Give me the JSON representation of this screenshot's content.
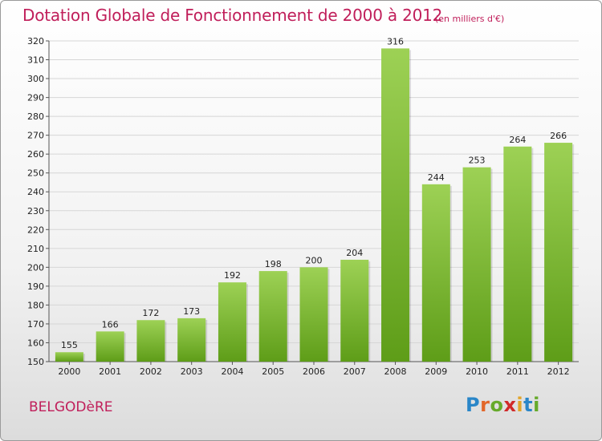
{
  "page": {
    "commune": "BELGODèRE",
    "logo": {
      "letters": [
        "P",
        "r",
        "o",
        "x",
        "i",
        "t",
        "i"
      ],
      "colors": [
        "#2a86c8",
        "#e2672a",
        "#66aa2b",
        "#d02a2a",
        "#e2a52a",
        "#2a86c8",
        "#66aa2b"
      ]
    }
  },
  "chart_data": {
    "type": "bar",
    "title": "Dotation Globale de Fonctionnement de 2000 à 2012",
    "unit_note": "(en milliers d'€)",
    "categories": [
      "2000",
      "2001",
      "2002",
      "2003",
      "2004",
      "2005",
      "2006",
      "2007",
      "2008",
      "2009",
      "2010",
      "2011",
      "2012"
    ],
    "values": [
      155,
      166,
      172,
      173,
      192,
      198,
      200,
      204,
      316,
      244,
      253,
      264,
      266
    ],
    "ylim": [
      150,
      320
    ],
    "yticks": [
      150,
      160,
      170,
      180,
      190,
      200,
      210,
      220,
      230,
      240,
      250,
      260,
      270,
      280,
      290,
      300,
      310,
      320
    ],
    "grid": true,
    "bar_color_top": "#9dd155",
    "bar_color_bottom": "#5e9d18"
  }
}
